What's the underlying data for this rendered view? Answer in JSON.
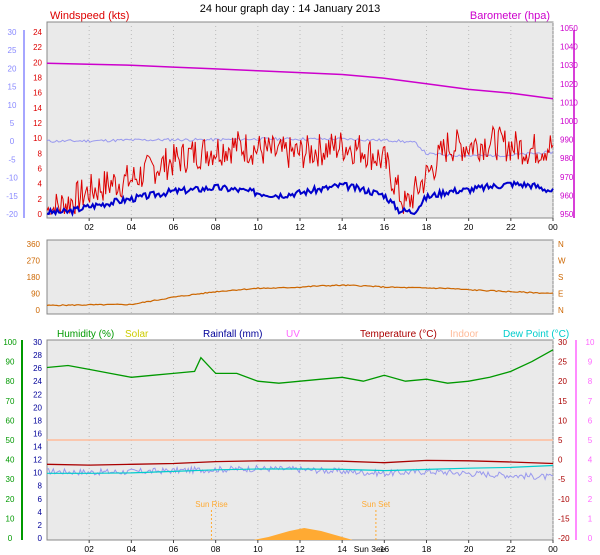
{
  "title": "24 hour graph day : 14 January 2013",
  "colors": {
    "wind": "#dd0000",
    "gust_bg": "#0000cc",
    "gust_left_axis": "#8888ff",
    "barometer": "#cc00cc",
    "direction": "#cc6600",
    "humidity": "#009900",
    "solar": "#cccc00",
    "rainfall": "#000099",
    "uv": "#ff66ff",
    "temperature": "#aa0000",
    "indoor": "#ffbb99",
    "dewpoint": "#00cccc",
    "temp_alt": "#9999ee",
    "sunlight_fill": "#ffaa33",
    "plot_bg": "#eaeaea",
    "grid": "#bbbbbb"
  },
  "x_ticks": [
    "02",
    "04",
    "06",
    "08",
    "10",
    "12",
    "14",
    "16",
    "18",
    "20",
    "22",
    "00"
  ],
  "sun_ticks": [
    "Sun Rise",
    "Sun Set"
  ],
  "sun_tick_hour": "Sun 3ee",
  "chart_data": [
    {
      "type": "line",
      "panel": "wind-barometer",
      "left_title": "Windspeed (kts)",
      "right_title": "Barometer (hpa)",
      "left_outer_ticks": [
        "30",
        "25",
        "20",
        "15",
        "10",
        "5",
        "0",
        "-5",
        "-10",
        "-15",
        "-20"
      ],
      "left_ticks": [
        "24",
        "22",
        "20",
        "18",
        "16",
        "14",
        "12",
        "10",
        "8",
        "6",
        "4",
        "2",
        "0"
      ],
      "right_ticks": [
        "1050",
        "1040",
        "1030",
        "1020",
        "1010",
        "1000",
        "990",
        "980",
        "970",
        "960",
        "950"
      ],
      "ylim_left": [
        0,
        25
      ],
      "ylim_right": [
        948,
        1052
      ],
      "xlim": [
        0,
        24
      ],
      "series": [
        {
          "role": "barometer",
          "axis": "right",
          "x": [
            0,
            2,
            4,
            6,
            8,
            10,
            12,
            14,
            16,
            18,
            20,
            22,
            24
          ],
          "y": [
            1031,
            1030.5,
            1030,
            1029,
            1028,
            1027,
            1026,
            1025,
            1023,
            1020,
            1017,
            1015,
            1012
          ]
        },
        {
          "role": "temperature-light",
          "axis": "left-outer",
          "x": [
            0,
            2,
            4,
            6,
            8,
            10,
            12,
            14,
            15,
            16.5,
            17.5,
            18,
            20,
            22,
            24
          ],
          "y": [
            0,
            0.1,
            0.3,
            0.4,
            0.4,
            0.6,
            0.6,
            0.6,
            0.4,
            0.2,
            -0.5,
            -3.5,
            -4,
            -3.8,
            -3
          ]
        },
        {
          "role": "wind-gust",
          "axis": "left",
          "x": [
            0,
            1,
            2,
            3,
            4,
            5,
            6,
            7,
            8,
            9,
            10,
            11,
            12,
            13,
            14,
            15,
            16,
            17,
            18,
            19,
            20,
            21,
            22,
            23,
            24
          ],
          "y": [
            0.5,
            1.5,
            3,
            4,
            4.5,
            6,
            7,
            8,
            8.5,
            9,
            8.5,
            8,
            8,
            8.5,
            9,
            8.5,
            7,
            1,
            5,
            9,
            9,
            9.5,
            9,
            8.5,
            9
          ]
        },
        {
          "role": "wind-speed",
          "axis": "left",
          "x": [
            0,
            1,
            2,
            3,
            4,
            5,
            6,
            7,
            8,
            9,
            10,
            11,
            12,
            13,
            14,
            15,
            16,
            16.7,
            17.4,
            18,
            19,
            20,
            21,
            22,
            23,
            24
          ],
          "y": [
            0.2,
            0.3,
            1,
            1.5,
            2,
            2.5,
            3,
            3.2,
            3.5,
            3.2,
            2.8,
            2.5,
            2.8,
            3.3,
            3.8,
            3.2,
            2.5,
            0.5,
            0.3,
            2.2,
            3,
            3.2,
            3.6,
            4,
            3.8,
            3
          ]
        }
      ]
    },
    {
      "type": "line",
      "panel": "wind-direction",
      "left_ticks": [
        "360",
        "270",
        "180",
        "90",
        "0"
      ],
      "right_ticks": [
        "N",
        "W",
        "S",
        "E",
        "N"
      ],
      "ylim": [
        0,
        360
      ],
      "xlim": [
        0,
        24
      ],
      "series": [
        {
          "role": "direction",
          "x": [
            0,
            2,
            4,
            5,
            6,
            7,
            8,
            9,
            10,
            11,
            12,
            13,
            14,
            15,
            16,
            17,
            18,
            19,
            20,
            21,
            22,
            23,
            24
          ],
          "y": [
            25,
            28,
            30,
            50,
            70,
            85,
            100,
            110,
            118,
            120,
            125,
            132,
            135,
            132,
            125,
            122,
            120,
            118,
            110,
            105,
            100,
            95,
            90
          ]
        }
      ]
    },
    {
      "type": "line",
      "panel": "humidity-temperature",
      "legend": [
        "Humidity (%)",
        "Solar",
        "Rainfall (mm)",
        "UV",
        "Temperature (°C)",
        "Indoor",
        "Dew Point (°C)"
      ],
      "left_outer_ticks": [
        "100",
        "90",
        "80",
        "70",
        "60",
        "50",
        "40",
        "30",
        "20",
        "10",
        "0"
      ],
      "left_ticks": [
        "30",
        "28",
        "26",
        "24",
        "22",
        "20",
        "18",
        "16",
        "14",
        "12",
        "10",
        "8",
        "6",
        "4",
        "2",
        "0"
      ],
      "right_ticks": [
        "30",
        "25",
        "20",
        "15",
        "10",
        "5",
        "0",
        "-5",
        "-10",
        "-15",
        "-20"
      ],
      "right_outer_ticks": [
        "10",
        "9",
        "8",
        "7",
        "6",
        "5",
        "4",
        "3",
        "2",
        "1",
        "0"
      ],
      "ylim_humidity": [
        0,
        100
      ],
      "ylim_temperature": [
        -20,
        30
      ],
      "xlim": [
        0,
        24
      ],
      "series": [
        {
          "role": "humidity",
          "axis": "humidity",
          "x": [
            0,
            1,
            2,
            3,
            4,
            5,
            6,
            7,
            7.3,
            8,
            9,
            10,
            11,
            12,
            13,
            14,
            15,
            16,
            17,
            18,
            19,
            20,
            21,
            22,
            23,
            24
          ],
          "y": [
            87,
            88,
            86,
            84,
            82,
            83,
            84,
            85,
            92,
            84,
            84,
            80,
            79,
            80,
            81,
            82,
            80,
            83,
            80,
            81,
            79,
            80,
            82,
            85,
            90,
            96
          ]
        },
        {
          "role": "indoor",
          "axis": "temperature",
          "x": [
            0,
            4,
            8,
            12,
            16,
            20,
            24
          ],
          "y": [
            5,
            5,
            5,
            5,
            5,
            5,
            5
          ]
        },
        {
          "role": "temperature",
          "axis": "temperature",
          "x": [
            0,
            2,
            4,
            6,
            8,
            10,
            12,
            14,
            16,
            18,
            20,
            22,
            24
          ],
          "y": [
            -1.2,
            -1.4,
            -1.2,
            -1.0,
            -0.5,
            -0.3,
            -0.3,
            -0.4,
            -0.8,
            -0.2,
            -0.3,
            -0.6,
            -1.0
          ]
        },
        {
          "role": "temp-alt",
          "axis": "temperature",
          "x": [
            0,
            2,
            4,
            6,
            8,
            10,
            12,
            14,
            16,
            18,
            20,
            22,
            24
          ],
          "y": [
            -3,
            -3.2,
            -3.1,
            -2.8,
            -2.5,
            -2.3,
            -2.5,
            -3,
            -3.5,
            -3,
            -3.5,
            -4,
            -4.5
          ]
        },
        {
          "role": "dewpoint",
          "axis": "temperature",
          "x": [
            0,
            2,
            4,
            6,
            8,
            10,
            12,
            14,
            16,
            18,
            20,
            22,
            24
          ],
          "y": [
            -3.5,
            -3.5,
            -3.4,
            -3.0,
            -2.6,
            -2.4,
            -2.4,
            -2.5,
            -2.8,
            -2.5,
            -2.2,
            -2.0,
            -1.5
          ]
        },
        {
          "role": "solar",
          "axis": "humidity",
          "x": [
            9.8,
            10.5,
            11.5,
            12.2,
            13,
            14,
            14.5
          ],
          "y": [
            0,
            1,
            3,
            4,
            3,
            1,
            0
          ]
        }
      ],
      "sunrise_hour": 7.8,
      "sunset_hour": 15.6
    }
  ]
}
